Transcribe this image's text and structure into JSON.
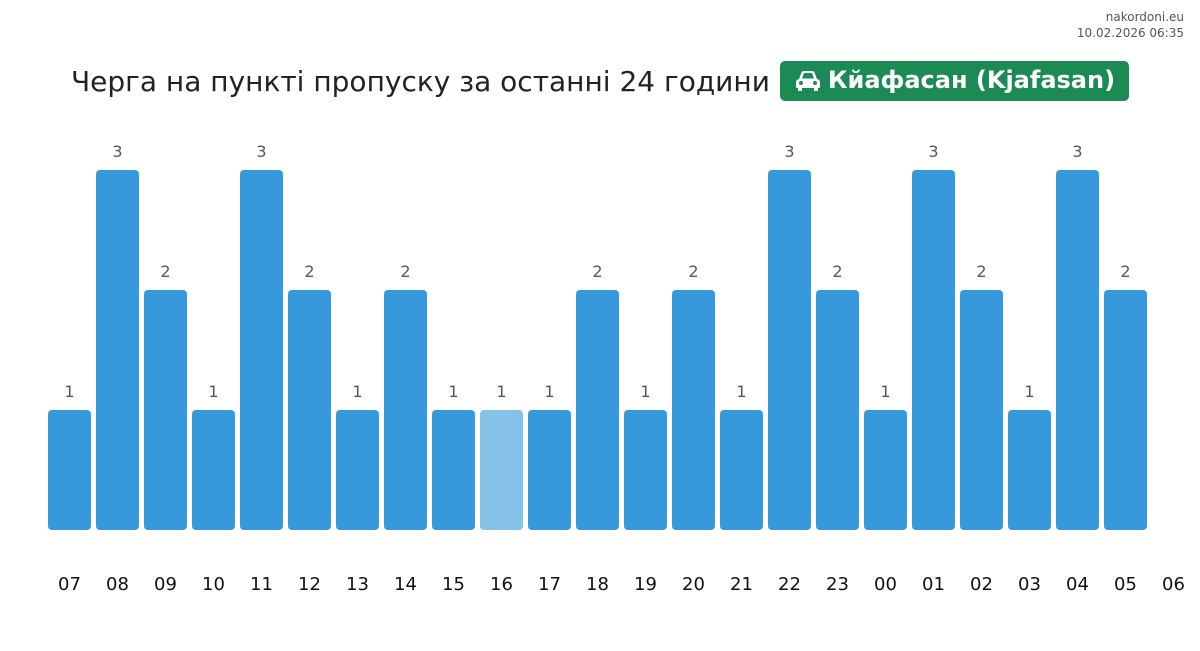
{
  "source": {
    "site": "nakordoni.eu",
    "timestamp": "10.02.2026 06:35"
  },
  "header": {
    "title": "Черга на пункті пропуску за останні 24 години",
    "badge_label": "Кйафасан (Kjafasan)",
    "badge_icon": "car-icon",
    "badge_color": "#1b8a55"
  },
  "chart_data": {
    "type": "bar",
    "title": "Черга на пункті пропуску за останні 24 години",
    "xlabel": "",
    "ylabel": "",
    "x_ticks": [
      "07",
      "08",
      "09",
      "10",
      "11",
      "12",
      "13",
      "14",
      "15",
      "16",
      "17",
      "18",
      "19",
      "20",
      "21",
      "22",
      "23",
      "00",
      "01",
      "02",
      "03",
      "04",
      "05",
      "06"
    ],
    "categories": [
      "07",
      "08",
      "09",
      "10",
      "11",
      "12",
      "13",
      "14",
      "15",
      "16",
      "17",
      "18",
      "19",
      "20",
      "21",
      "22",
      "23",
      "00",
      "01",
      "02",
      "03",
      "04",
      "05"
    ],
    "values": [
      1,
      3,
      2,
      1,
      3,
      2,
      1,
      2,
      1,
      1,
      1,
      2,
      1,
      2,
      1,
      3,
      2,
      1,
      3,
      2,
      1,
      3,
      2
    ],
    "highlight_category": "16",
    "ylim": [
      0,
      3
    ],
    "grid": false,
    "legend": "none",
    "bar_color": "#3799dc",
    "highlight_color": "#85c1e9"
  }
}
